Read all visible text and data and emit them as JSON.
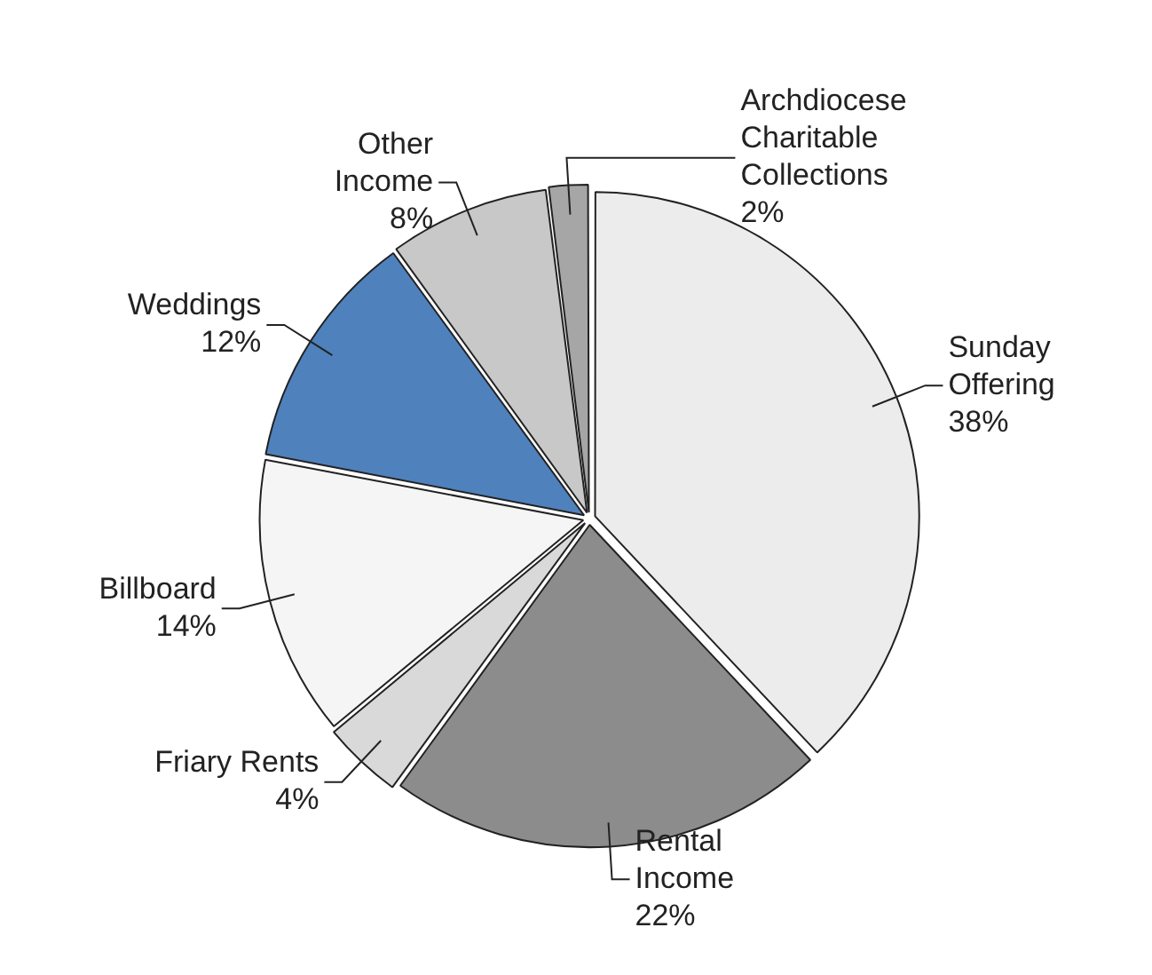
{
  "chart_data": {
    "type": "pie",
    "categories": [
      "Sunday Offering",
      "Rental Income",
      "Friary Rents",
      "Billboard",
      "Weddings",
      "Other Income",
      "Archdiocese Charitable Collections"
    ],
    "values": [
      38,
      22,
      4,
      14,
      12,
      8,
      2
    ],
    "colors": [
      "#ececec",
      "#8c8c8c",
      "#d9d9d9",
      "#f5f5f5",
      "#4f81bd",
      "#c8c8c8",
      "#a6a6a6"
    ],
    "value_labels": [
      "38%",
      "22%",
      "4%",
      "14%",
      "12%",
      "8%",
      "2%"
    ],
    "legend": false
  }
}
